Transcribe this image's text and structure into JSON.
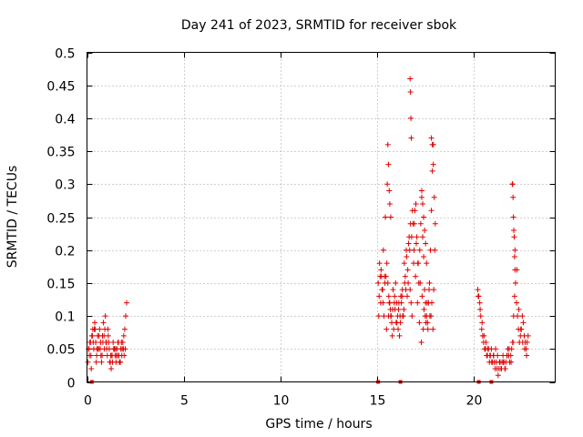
{
  "chart_data": {
    "type": "scatter",
    "title": "Day 241 of 2023, SRMTID for receiver sbok",
    "xlabel": "GPS time / hours",
    "ylabel": "SRMTID / TECUs",
    "xlim": [
      0,
      24.2
    ],
    "ylim": [
      0,
      0.5
    ],
    "xticks": [
      0,
      5,
      10,
      15,
      20
    ],
    "xtick_labels": [
      "0",
      "5",
      "10",
      "15",
      "20"
    ],
    "yticks": [
      0,
      0.05,
      0.1,
      0.15,
      0.2,
      0.25,
      0.3,
      0.35,
      0.4,
      0.45,
      0.5
    ],
    "ytick_labels": [
      "0",
      "0.05",
      "0.1",
      "0.15",
      "0.2",
      "0.25",
      "0.3",
      "0.35",
      "0.4",
      "0.45",
      "0.5"
    ],
    "grid": true,
    "marker": "plus",
    "color": "#e00000",
    "series": [
      {
        "name": "SRMTID",
        "x": [
          0.05,
          0.1,
          0.15,
          0.2,
          0.25,
          0.3,
          0.35,
          0.4,
          0.45,
          0.5,
          0.55,
          0.6,
          0.65,
          0.7,
          0.75,
          0.8,
          0.85,
          0.9,
          0.95,
          1.0,
          1.05,
          1.1,
          1.15,
          1.2,
          1.25,
          1.3,
          1.35,
          1.4,
          1.45,
          1.5,
          1.55,
          1.6,
          1.65,
          1.7,
          1.75,
          1.8,
          1.85,
          1.9,
          1.95,
          2.0,
          2.05,
          0.12,
          0.22,
          0.32,
          0.42,
          0.52,
          0.62,
          0.72,
          0.82,
          0.92,
          1.02,
          1.12,
          1.22,
          1.32,
          1.42,
          1.52,
          1.62,
          1.72,
          1.82,
          1.92,
          0.08,
          0.28,
          0.48,
          0.68,
          0.88,
          1.08,
          1.28,
          1.48,
          1.68,
          1.88,
          0.18,
          0.38,
          0.58,
          0.78,
          0.98,
          1.18,
          1.38,
          1.58,
          1.78,
          1.98,
          15.05,
          15.1,
          15.15,
          15.2,
          15.25,
          15.3,
          15.35,
          15.4,
          15.45,
          15.5,
          15.55,
          15.6,
          15.65,
          15.7,
          15.75,
          15.8,
          15.85,
          15.9,
          15.95,
          16.0,
          16.05,
          16.1,
          16.15,
          16.2,
          16.25,
          16.3,
          16.35,
          16.4,
          16.45,
          16.5,
          16.55,
          16.6,
          16.65,
          16.7,
          16.75,
          16.8,
          16.85,
          16.9,
          16.95,
          17.0,
          17.05,
          17.1,
          17.15,
          17.2,
          17.25,
          17.3,
          17.35,
          17.4,
          17.45,
          17.5,
          17.55,
          17.6,
          17.65,
          17.7,
          17.75,
          17.8,
          17.85,
          17.9,
          17.95,
          18.0,
          15.08,
          15.18,
          15.28,
          15.38,
          15.48,
          15.58,
          15.68,
          15.78,
          15.88,
          15.98,
          16.08,
          16.18,
          16.28,
          16.38,
          16.48,
          16.58,
          16.68,
          16.78,
          16.88,
          16.98,
          17.08,
          17.18,
          17.28,
          17.38,
          17.48,
          17.58,
          17.68,
          17.78,
          17.88,
          17.98,
          15.12,
          15.22,
          15.32,
          15.42,
          15.52,
          15.62,
          15.72,
          15.82,
          15.92,
          16.02,
          16.12,
          16.22,
          16.32,
          16.42,
          16.52,
          16.62,
          16.72,
          16.82,
          16.92,
          17.02,
          17.12,
          17.22,
          17.32,
          17.42,
          17.52,
          17.62,
          17.72,
          17.82,
          17.92,
          16.7,
          16.72,
          16.74,
          16.76,
          17.3,
          17.35,
          17.4,
          17.45,
          17.5,
          17.55,
          17.8,
          17.85,
          17.9,
          15.55,
          15.58,
          15.62,
          15.65,
          15.7,
          20.2,
          20.25,
          20.3,
          20.35,
          20.4,
          20.45,
          20.5,
          20.55,
          20.6,
          20.65,
          20.7,
          20.75,
          20.8,
          20.85,
          20.9,
          20.95,
          21.0,
          21.05,
          21.1,
          21.15,
          21.2,
          21.25,
          21.3,
          21.35,
          21.4,
          21.45,
          21.5,
          21.55,
          21.6,
          21.65,
          21.7,
          21.75,
          21.8,
          21.85,
          21.9,
          21.95,
          22.0,
          22.05,
          22.1,
          22.15,
          22.2,
          22.25,
          22.3,
          22.35,
          22.4,
          22.45,
          22.5,
          22.55,
          22.6,
          22.65,
          22.7,
          22.75,
          22.8,
          20.22,
          20.32,
          20.42,
          20.52,
          20.62,
          20.72,
          20.82,
          20.92,
          21.02,
          21.12,
          21.22,
          21.32,
          21.42,
          21.52,
          21.62,
          21.72,
          21.82,
          21.92,
          22.02,
          22.12,
          22.22,
          22.32,
          22.42,
          22.52,
          22.62,
          22.72,
          21.98,
          22.0,
          22.02,
          22.04,
          22.06,
          22.08,
          22.1,
          22.12
        ],
        "y": [
          0.03,
          0.05,
          0.06,
          0.04,
          0.07,
          0.08,
          0.05,
          0.09,
          0.06,
          0.04,
          0.07,
          0.05,
          0.08,
          0.06,
          0.03,
          0.07,
          0.09,
          0.05,
          0.1,
          0.06,
          0.04,
          0.07,
          0.05,
          0.03,
          0.02,
          0.04,
          0.06,
          0.05,
          0.04,
          0.03,
          0.05,
          0.06,
          0.04,
          0.03,
          0.05,
          0.04,
          0.06,
          0.07,
          0.08,
          0.1,
          0.12,
          0.04,
          0.02,
          0.06,
          0.08,
          0.05,
          0.07,
          0.04,
          0.06,
          0.08,
          0.05,
          0.06,
          0.04,
          0.03,
          0.05,
          0.04,
          0.06,
          0.03,
          0.05,
          0.04,
          0.05,
          0.07,
          0.03,
          0.05,
          0.07,
          0.08,
          0.04,
          0.05,
          0.03,
          0.05,
          0.06,
          0.08,
          0.05,
          0.04,
          0.06,
          0.03,
          0.05,
          0.04,
          0.06,
          0.05,
          0.15,
          0.13,
          0.16,
          0.17,
          0.14,
          0.12,
          0.1,
          0.15,
          0.16,
          0.18,
          0.15,
          0.13,
          0.12,
          0.1,
          0.09,
          0.11,
          0.08,
          0.13,
          0.15,
          0.12,
          0.1,
          0.11,
          0.07,
          0.09,
          0.12,
          0.14,
          0.1,
          0.18,
          0.16,
          0.2,
          0.13,
          0.15,
          0.22,
          0.14,
          0.12,
          0.1,
          0.24,
          0.2,
          0.26,
          0.27,
          0.22,
          0.18,
          0.15,
          0.2,
          0.24,
          0.28,
          0.22,
          0.19,
          0.14,
          0.12,
          0.1,
          0.09,
          0.12,
          0.15,
          0.2,
          0.26,
          0.32,
          0.36,
          0.28,
          0.24,
          0.1,
          0.12,
          0.14,
          0.16,
          0.08,
          0.1,
          0.11,
          0.07,
          0.12,
          0.09,
          0.08,
          0.1,
          0.13,
          0.11,
          0.14,
          0.17,
          0.2,
          0.22,
          0.18,
          0.16,
          0.12,
          0.09,
          0.06,
          0.08,
          0.1,
          0.12,
          0.14,
          0.1,
          0.08,
          0.2,
          0.18,
          0.16,
          0.2,
          0.25,
          0.3,
          0.12,
          0.1,
          0.14,
          0.11,
          0.09,
          0.12,
          0.13,
          0.1,
          0.15,
          0.19,
          0.21,
          0.24,
          0.26,
          0.24,
          0.21,
          0.18,
          0.15,
          0.13,
          0.11,
          0.09,
          0.08,
          0.1,
          0.12,
          0.14,
          0.46,
          0.44,
          0.4,
          0.37,
          0.29,
          0.27,
          0.25,
          0.23,
          0.21,
          0.18,
          0.37,
          0.36,
          0.33,
          0.36,
          0.33,
          0.29,
          0.27,
          0.25,
          0.14,
          0.13,
          0.12,
          0.1,
          0.08,
          0.07,
          0.06,
          0.05,
          0.05,
          0.04,
          0.04,
          0.05,
          0.03,
          0.04,
          0.05,
          0.03,
          0.04,
          0.03,
          0.02,
          0.03,
          0.02,
          0.01,
          0.02,
          0.03,
          0.02,
          0.03,
          0.04,
          0.03,
          0.02,
          0.03,
          0.04,
          0.05,
          0.04,
          0.03,
          0.04,
          0.05,
          0.06,
          0.1,
          0.13,
          0.15,
          0.12,
          0.1,
          0.08,
          0.06,
          0.07,
          0.08,
          0.1,
          0.09,
          0.07,
          0.06,
          0.05,
          0.06,
          0.07,
          0.13,
          0.11,
          0.09,
          0.07,
          0.06,
          0.05,
          0.04,
          0.03,
          0.04,
          0.05,
          0.04,
          0.03,
          0.02,
          0.03,
          0.02,
          0.04,
          0.05,
          0.03,
          0.06,
          0.2,
          0.17,
          0.11,
          0.08,
          0.06,
          0.05,
          0.04,
          0.3,
          0.3,
          0.28,
          0.25,
          0.23,
          0.22,
          0.19,
          0.17
        ],
        "x_axis_markers": [
          0.25,
          15.05,
          16.2,
          20.25,
          20.9
        ]
      }
    ]
  }
}
